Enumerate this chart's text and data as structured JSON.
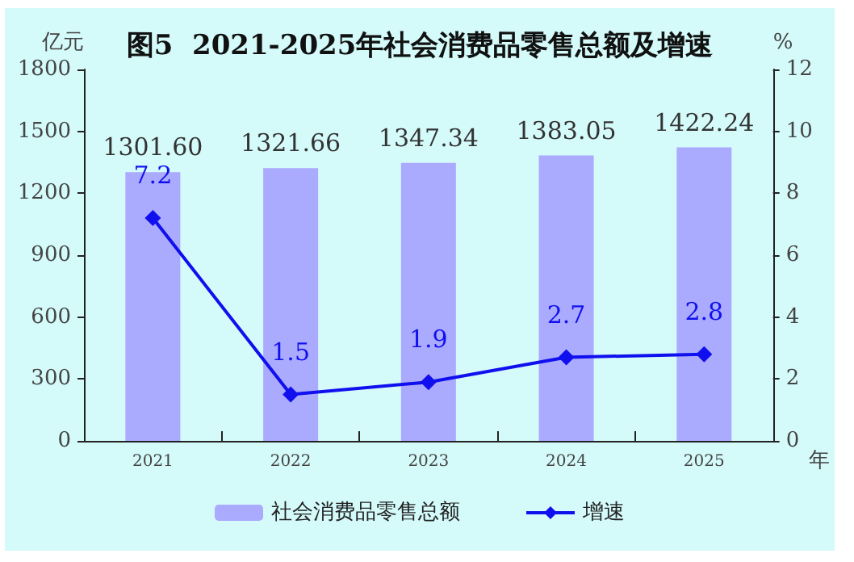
{
  "chart_data": {
    "type": "bar",
    "title": "图5  2021-2025年社会消费品零售总额及增速",
    "xlabel": "年",
    "ylabel": "亿元",
    "y2label": "%",
    "categories": [
      "2021",
      "2022",
      "2023",
      "2024",
      "2025"
    ],
    "series": [
      {
        "name": "社会消费品零售总额",
        "color": "#aaaaff",
        "values": [
          1301.6,
          1321.66,
          1347.34,
          1383.05,
          1422.24
        ],
        "value_labels": [
          "1301.60",
          "1321.66",
          "1347.34",
          "1383.05",
          "1422.24"
        ]
      },
      {
        "name": "增速",
        "type": "line",
        "axis": "y2",
        "color": "#1010ee",
        "values": [
          7.2,
          1.5,
          1.9,
          2.7,
          2.8
        ]
      }
    ],
    "ylim": [
      0,
      1800
    ],
    "yticks": [
      0,
      300,
      600,
      900,
      1200,
      1500,
      1800
    ],
    "y2lim": [
      0,
      12
    ],
    "y2ticks": [
      0,
      2,
      4,
      6,
      8,
      10,
      12
    ],
    "data_labels": true,
    "legend": "bottom",
    "marker": "diamond",
    "grid": false
  }
}
